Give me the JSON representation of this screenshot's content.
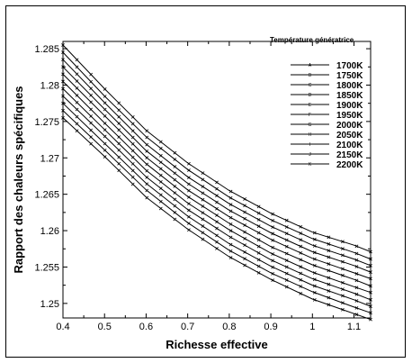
{
  "chart_data": {
    "type": "line",
    "title": "",
    "xlabel": "Richesse effective",
    "ylabel": "Rapport des chaleurs spécifiques",
    "xlim": [
      0.4,
      1.14
    ],
    "ylim": [
      1.248,
      1.286
    ],
    "xticks": [
      "0.4",
      "0.5",
      "0.6",
      "0.7",
      "0.8",
      "0.9",
      "1",
      "1.1"
    ],
    "yticks": [
      "1.25",
      "1.255",
      "1.26",
      "1.265",
      "1.27",
      "1.275",
      "1.28",
      "1.285"
    ],
    "legend_title": "Température génératrice",
    "legend_position": "top-right",
    "grid": false,
    "x": [
      0.4,
      0.5,
      0.6,
      0.7,
      0.8,
      0.9,
      1.0,
      1.1,
      1.14
    ],
    "series": [
      {
        "name": "1700K",
        "marker": "A",
        "values": [
          1.2855,
          1.2795,
          1.2738,
          1.2693,
          1.2655,
          1.2624,
          1.2598,
          1.258,
          1.2571
        ]
      },
      {
        "name": "1750K",
        "marker": "B",
        "values": [
          1.2845,
          1.2785,
          1.2729,
          1.2684,
          1.2646,
          1.2615,
          1.2589,
          1.257,
          1.2561
        ]
      },
      {
        "name": "1800K",
        "marker": "C",
        "values": [
          1.2835,
          1.2776,
          1.2719,
          1.2674,
          1.2637,
          1.2606,
          1.258,
          1.2561,
          1.2552
        ]
      },
      {
        "name": "1850K",
        "marker": "D",
        "values": [
          1.2825,
          1.2767,
          1.271,
          1.2665,
          1.2628,
          1.2597,
          1.2571,
          1.2552,
          1.2543
        ]
      },
      {
        "name": "1900K",
        "marker": "E",
        "values": [
          1.2815,
          1.2758,
          1.2701,
          1.2656,
          1.2619,
          1.2588,
          1.2562,
          1.2542,
          1.2534
        ]
      },
      {
        "name": "1950K",
        "marker": "F",
        "values": [
          1.2805,
          1.2748,
          1.2692,
          1.2647,
          1.261,
          1.2578,
          1.2553,
          1.2533,
          1.2524
        ]
      },
      {
        "name": "2000K",
        "marker": "G",
        "values": [
          1.2795,
          1.2739,
          1.2683,
          1.2638,
          1.2601,
          1.2569,
          1.2543,
          1.2523,
          1.2515
        ]
      },
      {
        "name": "2050K",
        "marker": "H",
        "values": [
          1.2785,
          1.273,
          1.2674,
          1.2629,
          1.2592,
          1.256,
          1.2534,
          1.2514,
          1.2505
        ]
      },
      {
        "name": "2100K",
        "marker": "I",
        "values": [
          1.2775,
          1.272,
          1.2665,
          1.262,
          1.2582,
          1.2551,
          1.2525,
          1.2505,
          1.2496
        ]
      },
      {
        "name": "2150K",
        "marker": "J",
        "values": [
          1.2765,
          1.2711,
          1.2656,
          1.2611,
          1.2573,
          1.2542,
          1.2516,
          1.2495,
          1.2487
        ]
      },
      {
        "name": "2200K",
        "marker": "K",
        "values": [
          1.2755,
          1.2702,
          1.2646,
          1.2602,
          1.2564,
          1.2533,
          1.2506,
          1.2486,
          1.2478
        ]
      }
    ]
  }
}
